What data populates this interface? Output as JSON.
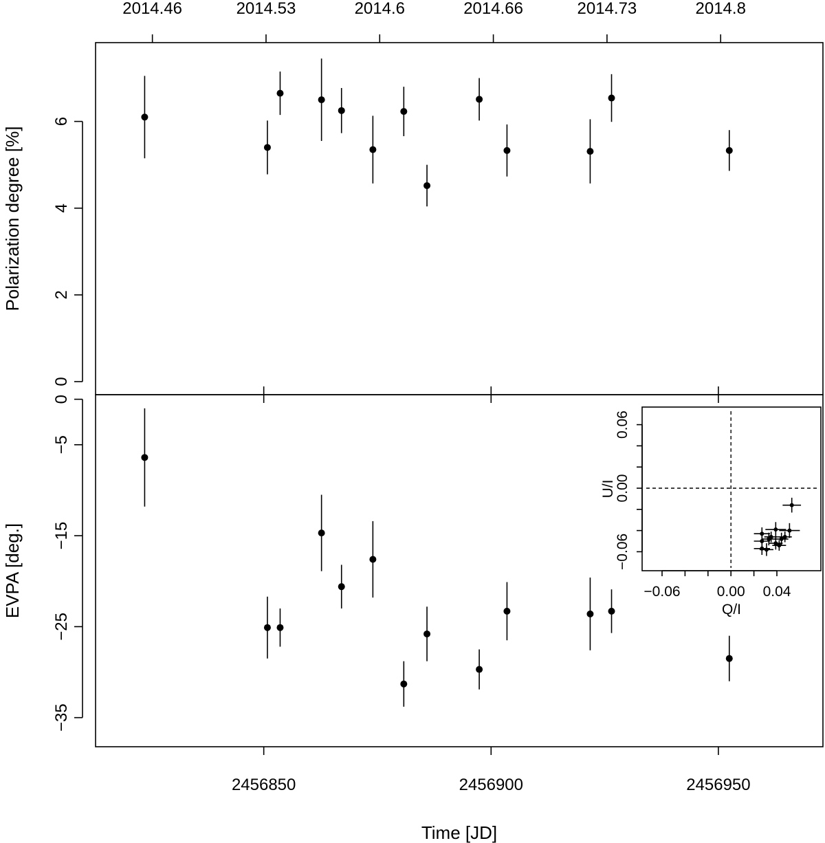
{
  "chart_data": [
    {
      "panel": "polarization",
      "type": "scatter",
      "ylabel": "Polarization degree [%]",
      "ylim": [
        0,
        7.5
      ],
      "yticks": [
        0,
        2,
        4,
        6
      ],
      "top_axis_ticks": [
        {
          "jd": 2456825.5,
          "label": "2014.46"
        },
        {
          "jd": 2456850.5,
          "label": "2014.53"
        },
        {
          "jd": 2456875.5,
          "label": "2014.6"
        },
        {
          "jd": 2456900.5,
          "label": "2014.66"
        },
        {
          "jd": 2456925.5,
          "label": "2014.73"
        },
        {
          "jd": 2456950.5,
          "label": "2014.8"
        }
      ],
      "points": [
        {
          "x": 2456823.8,
          "y": 6.1,
          "err": 0.95
        },
        {
          "x": 2456850.8,
          "y": 5.4,
          "err": 0.62
        },
        {
          "x": 2456853.6,
          "y": 6.65,
          "err": 0.5
        },
        {
          "x": 2456862.7,
          "y": 6.5,
          "err": 0.95
        },
        {
          "x": 2456867.1,
          "y": 6.25,
          "err": 0.52
        },
        {
          "x": 2456874.0,
          "y": 5.35,
          "err": 0.78
        },
        {
          "x": 2456880.8,
          "y": 6.23,
          "err": 0.57
        },
        {
          "x": 2456885.9,
          "y": 4.52,
          "err": 0.48
        },
        {
          "x": 2456897.4,
          "y": 6.51,
          "err": 0.49
        },
        {
          "x": 2456903.5,
          "y": 5.33,
          "err": 0.6
        },
        {
          "x": 2456921.8,
          "y": 5.31,
          "err": 0.74
        },
        {
          "x": 2456926.5,
          "y": 6.54,
          "err": 0.55
        },
        {
          "x": 2456952.4,
          "y": 5.33,
          "err": 0.47
        }
      ]
    },
    {
      "panel": "evpa",
      "type": "scatter",
      "xlabel": "Time [JD]",
      "ylabel": "EVPA [deg.]",
      "xlim": [
        2456813,
        2456973
      ],
      "ylim": [
        -38.2,
        0.2
      ],
      "xticks": [
        2456850,
        2456900,
        2456950
      ],
      "xtick_labels": [
        "2456850",
        "2456900",
        "2456950"
      ],
      "yticks": [
        0,
        -5,
        -15,
        -25,
        -35
      ],
      "ytick_labels": [
        "0",
        "−5",
        "−15",
        "−25",
        "−35"
      ],
      "points": [
        {
          "x": 2456823.8,
          "y": -6.4,
          "err": 5.4
        },
        {
          "x": 2456850.8,
          "y": -25.1,
          "err": 3.4
        },
        {
          "x": 2456853.6,
          "y": -25.1,
          "err": 2.1
        },
        {
          "x": 2456862.7,
          "y": -14.7,
          "err": 4.2
        },
        {
          "x": 2456867.1,
          "y": -20.6,
          "err": 2.4
        },
        {
          "x": 2456874.0,
          "y": -17.6,
          "err": 4.2
        },
        {
          "x": 2456880.8,
          "y": -31.3,
          "err": 2.5
        },
        {
          "x": 2456885.9,
          "y": -25.8,
          "err": 3.0
        },
        {
          "x": 2456897.4,
          "y": -29.7,
          "err": 2.2
        },
        {
          "x": 2456903.5,
          "y": -23.3,
          "err": 3.2
        },
        {
          "x": 2456921.8,
          "y": -23.6,
          "err": 4.0
        },
        {
          "x": 2456926.5,
          "y": -23.3,
          "err": 2.4
        },
        {
          "x": 2456952.4,
          "y": -28.5,
          "err": 2.5
        }
      ]
    },
    {
      "panel": "inset-qu",
      "type": "scatter",
      "xlabel": "Q/I",
      "ylabel": "U/I",
      "xlim": [
        -0.09,
        0.07
      ],
      "ylim": [
        -0.09,
        0.09
      ],
      "xticks": [
        -0.06,
        0.0,
        0.04
      ],
      "xtick_labels": [
        "−0.06",
        "0.00",
        "0.04"
      ],
      "yticks": [
        -0.06,
        0.0,
        0.06
      ],
      "ytick_labels": [
        "−0.06",
        "0.00",
        "0.06"
      ],
      "reference_lines": {
        "q": 0.0,
        "u": 0.0,
        "style": "dashed"
      },
      "points": [
        {
          "q": 0.053,
          "u": -0.016,
          "eq": 0.008,
          "eu": 0.007
        },
        {
          "q": 0.027,
          "u": -0.043,
          "eq": 0.007,
          "eu": 0.006
        },
        {
          "q": 0.027,
          "u": -0.05,
          "eq": 0.007,
          "eu": 0.006
        },
        {
          "q": 0.027,
          "u": -0.057,
          "eq": 0.007,
          "eu": 0.006
        },
        {
          "q": 0.033,
          "u": -0.048,
          "eq": 0.006,
          "eu": 0.006
        },
        {
          "q": 0.035,
          "u": -0.046,
          "eq": 0.006,
          "eu": 0.005
        },
        {
          "q": 0.031,
          "u": -0.058,
          "eq": 0.006,
          "eu": 0.006
        },
        {
          "q": 0.039,
          "u": -0.039,
          "eq": 0.009,
          "eu": 0.007
        },
        {
          "q": 0.044,
          "u": -0.048,
          "eq": 0.006,
          "eu": 0.006
        },
        {
          "q": 0.042,
          "u": -0.054,
          "eq": 0.006,
          "eu": 0.005
        },
        {
          "q": 0.039,
          "u": -0.052,
          "eq": 0.006,
          "eu": 0.006
        },
        {
          "q": 0.051,
          "u": -0.04,
          "eq": 0.009,
          "eu": 0.007
        },
        {
          "q": 0.047,
          "u": -0.046,
          "eq": 0.006,
          "eu": 0.005
        }
      ]
    }
  ]
}
